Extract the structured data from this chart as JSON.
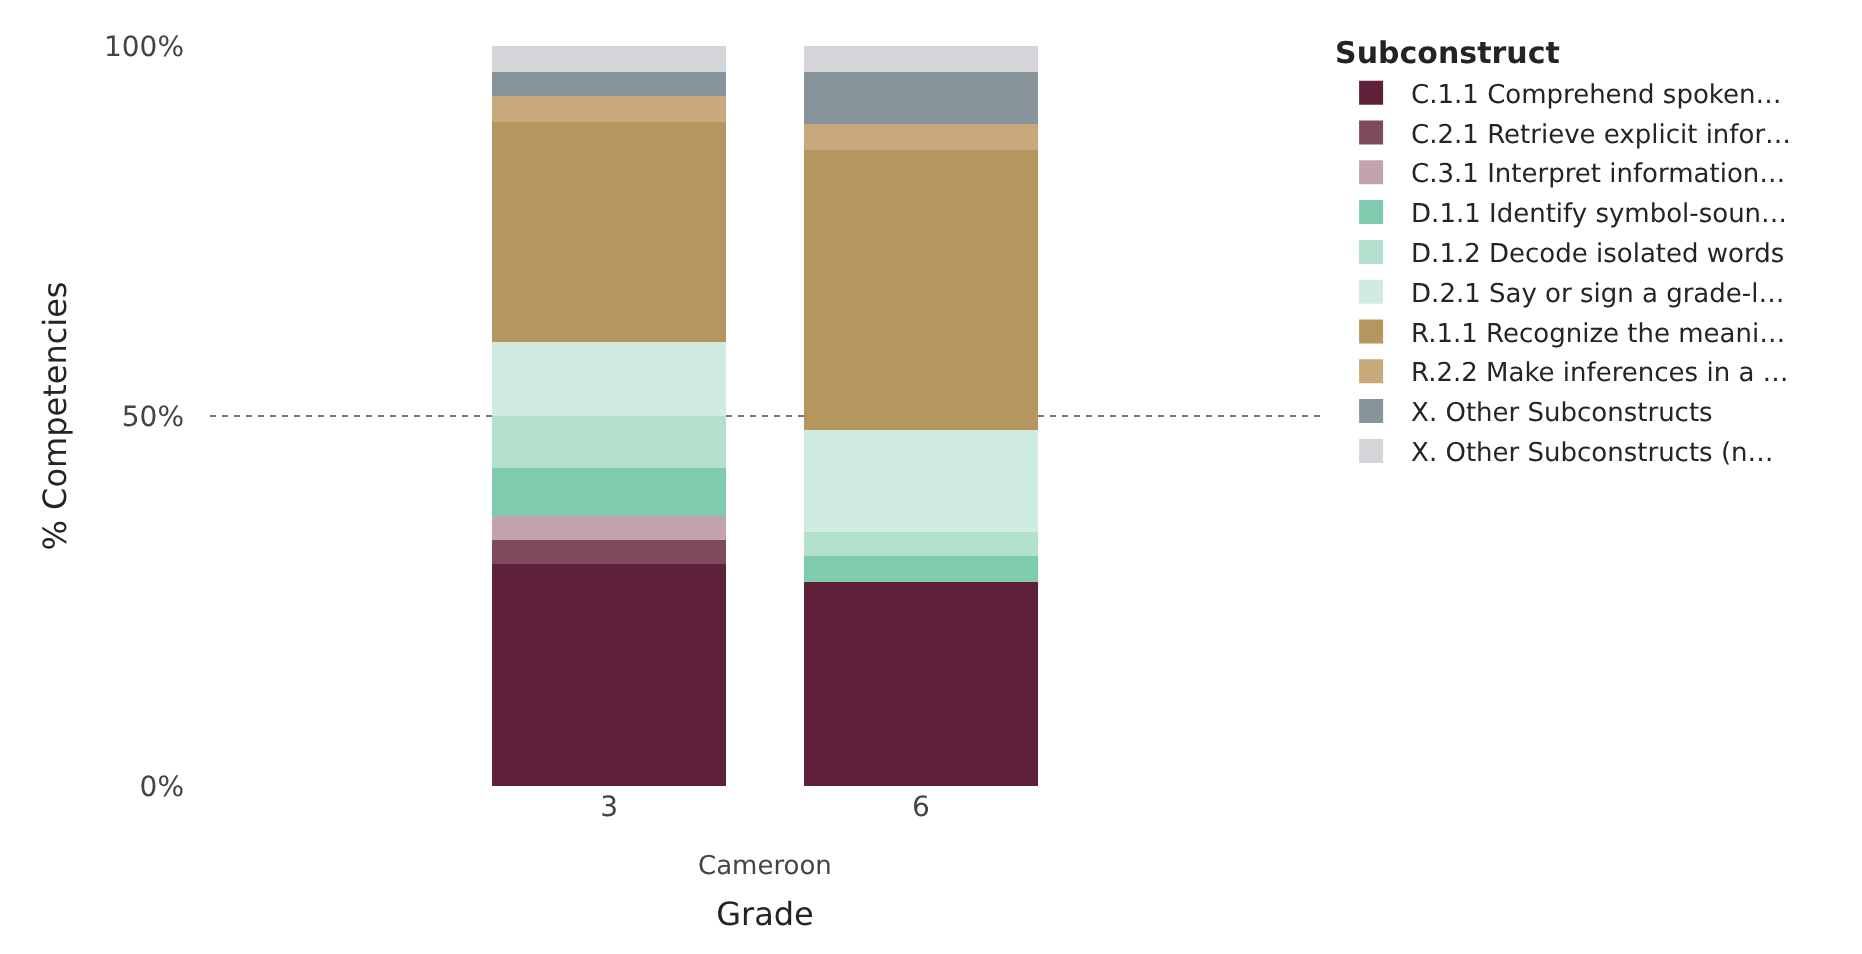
{
  "chart_data": {
    "type": "bar",
    "stacked": true,
    "xlabel": "Grade",
    "ylabel": "% Competencies",
    "legend_title": "Subconstruct",
    "legend": "right",
    "grid": "y",
    "categories": [
      "3",
      "6"
    ],
    "ylim": [
      0,
      100
    ],
    "yticks": [
      {
        "value": 0,
        "label": "0%"
      },
      {
        "value": 50,
        "label": "50%"
      },
      {
        "value": 100,
        "label": "100%"
      }
    ],
    "annotations": [
      "Cameroon"
    ],
    "series": [
      {
        "name": "C.1.1 Comprehend spoken…",
        "color": "#5e2139",
        "values": [
          29.9,
          27.6
        ]
      },
      {
        "name": "C.2.1 Retrieve explicit infor…",
        "color": "#7f4a5e",
        "values": [
          3.4,
          0
        ]
      },
      {
        "name": "C.3.1 Interpret information…",
        "color": "#c4a3b0",
        "values": [
          3.3,
          0
        ]
      },
      {
        "name": "D.1.1 Identify symbol-soun…",
        "color": "#7fcbad",
        "values": [
          6.5,
          3.4
        ]
      },
      {
        "name": "D.1.2 Decode isolated words",
        "color": "#b2e0cd",
        "values": [
          6.8,
          3.4
        ]
      },
      {
        "name": "D.2.1 Say or sign a grade-l…",
        "color": "#d0ece0",
        "values": [
          10.1,
          13.8
        ]
      },
      {
        "name": "R.1.1 Recognize the meani…",
        "color": "#b5965f",
        "values": [
          29.7,
          37.7
        ]
      },
      {
        "name": "R.2.2 Make inferences in a …",
        "color": "#c9a97c",
        "values": [
          3.5,
          3.6
        ]
      },
      {
        "name": "X. Other Subconstructs",
        "color": "#87959a",
        "values": [
          3.2,
          6.9
        ]
      },
      {
        "name": "X. Other Subconstructs (n…",
        "color": "#d3d5d8",
        "values": [
          3.6,
          3.6
        ]
      }
    ]
  }
}
